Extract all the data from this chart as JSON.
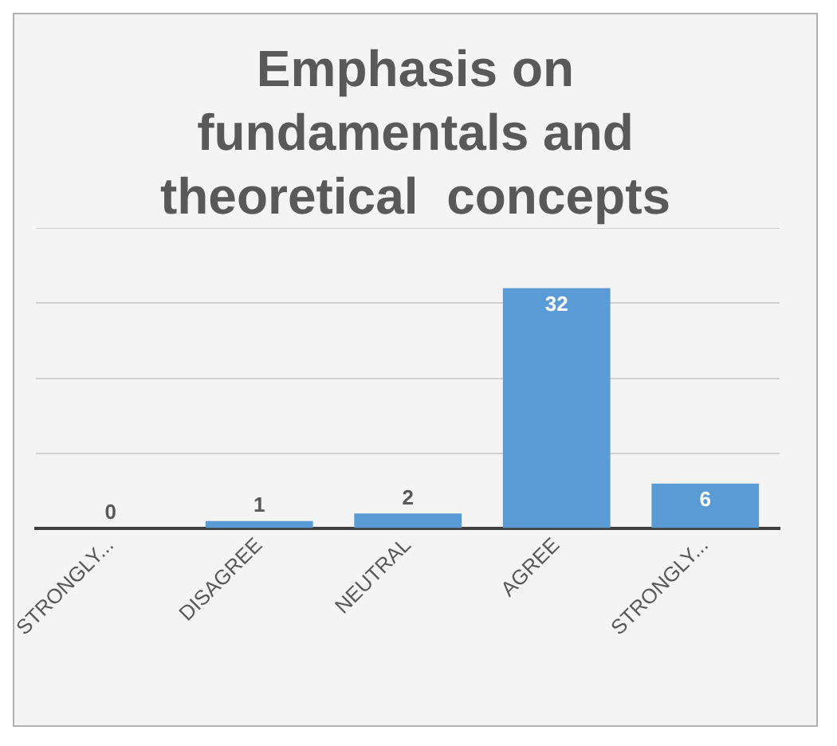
{
  "chart_data": {
    "type": "bar",
    "title": "Emphasis on fundamentals and theoretical  concepts",
    "categories": [
      "STRONGLY...",
      "DISAGREE",
      "NEUTRAL",
      "AGREE",
      "STRONGLY..."
    ],
    "values": [
      0,
      1,
      2,
      32,
      6
    ],
    "color": "#5b9bd5",
    "data_labels": true,
    "grid": "y",
    "tick_labels": "x"
  }
}
